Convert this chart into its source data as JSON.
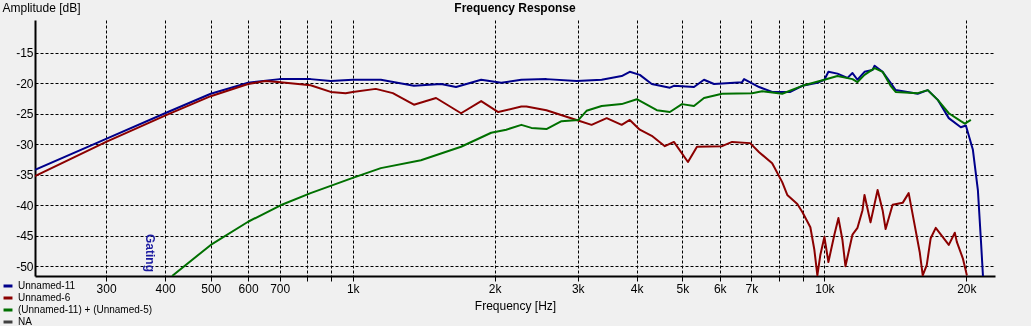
{
  "chart_data": {
    "type": "line",
    "title": "Frequency Response",
    "xlabel": "Frequency [Hz]",
    "ylabel": "Amplitude [dB]",
    "log": "x",
    "grid": true,
    "legend": "bottom left",
    "marker": "none",
    "line_style": "solid",
    "xlim": [
      212,
      23000
    ],
    "ylim": [
      -51.6,
      -9.6
    ],
    "xticks": [
      300,
      400,
      500,
      600,
      700,
      {
        "value": 800,
        "label": null
      },
      {
        "value": 900,
        "label": null
      },
      {
        "value": 1000,
        "label": "1k"
      },
      {
        "value": 2000,
        "label": "2k"
      },
      {
        "value": 3000,
        "label": "3k"
      },
      {
        "value": 4000,
        "label": "4k"
      },
      {
        "value": 5000,
        "label": "5k"
      },
      {
        "value": 6000,
        "label": "6k"
      },
      {
        "value": 7000,
        "label": "7k"
      },
      {
        "value": 8000,
        "label": null
      },
      {
        "value": 9000,
        "label": null
      },
      {
        "value": 10000,
        "label": "10k"
      },
      {
        "value": 20000,
        "label": "20k"
      }
    ],
    "yticks": [
      -15,
      -20,
      -25,
      -30,
      -35,
      -40,
      -45,
      -50
    ],
    "annotations": [
      "Gating"
    ],
    "series": [
      {
        "name": "Unnamed-11",
        "color": "#00008b",
        "x": [
          212,
          300,
          400,
          500,
          600,
          700,
          814,
          898,
          1000,
          1147,
          1348,
          1539,
          1656,
          1872,
          2065,
          2278,
          2574,
          2982,
          3371,
          3717,
          3867,
          4061,
          4305,
          4703,
          4797,
          5290,
          5556,
          5834,
          6691,
          6757,
          7272,
          7750,
          8467,
          8979,
          9663,
          10000,
          10198,
          10658,
          11192,
          11470,
          11754,
          12163,
          12648,
          12777,
          13287,
          13815,
          14159,
          15773,
          16563,
          17391,
          18354,
          19467,
          19953,
          20647,
          21156,
          21470,
          21688
        ],
        "values": [
          -34.2,
          -29.1,
          -24.9,
          -21.7,
          -19.9,
          -19.3,
          -19.3,
          -19.6,
          -19.4,
          -19.4,
          -20.4,
          -20.1,
          -20.6,
          -19.4,
          -19.9,
          -19.4,
          -19.3,
          -19.6,
          -19.4,
          -18.8,
          -18.1,
          -18.6,
          -20.1,
          -20.7,
          -20.4,
          -20.6,
          -19.4,
          -20.1,
          -19.8,
          -19.3,
          -20.6,
          -21.4,
          -21.4,
          -20.4,
          -19.9,
          -19.4,
          -18.1,
          -18.4,
          -19.1,
          -18.3,
          -19.4,
          -18.1,
          -17.8,
          -17.1,
          -18.1,
          -19.9,
          -21.1,
          -21.7,
          -21.1,
          -22.7,
          -25.7,
          -27.2,
          -26.9,
          -30.9,
          -37.5,
          -45.7,
          -51.6
        ]
      },
      {
        "name": "Unnamed-6",
        "color": "#8b0000",
        "x": [
          212,
          300,
          400,
          500,
          600,
          653,
          703,
          814,
          898,
          966,
          1000,
          1119,
          1216,
          1348,
          1502,
          1697,
          1872,
          2035,
          2278,
          2335,
          2574,
          2982,
          3209,
          3455,
          3717,
          3867,
          4061,
          4305,
          4590,
          4797,
          5137,
          5369,
          6067,
          6372,
          6958,
          7272,
          7750,
          8139,
          8343,
          8762,
          8979,
          9338,
          9522,
          9663,
          9806,
          10000,
          10198,
          10502,
          10710,
          10922,
          11083,
          11470,
          11754,
          12045,
          12163,
          12526,
          12967,
          13287,
          13485,
          13952,
          14655,
          15091,
          15542,
          15928,
          16163,
          16482,
          16803,
          17222,
          18354,
          18902,
          19090,
          19657,
          20050
        ],
        "values": [
          -35.2,
          -29.6,
          -25.3,
          -22.1,
          -20.1,
          -19.6,
          -19.8,
          -20.3,
          -21.4,
          -21.6,
          -21.4,
          -20.9,
          -21.6,
          -23.5,
          -22.4,
          -24.9,
          -22.9,
          -24.7,
          -23.8,
          -23.8,
          -24.4,
          -26.0,
          -26.8,
          -25.7,
          -26.8,
          -26.0,
          -27.6,
          -28.6,
          -30.3,
          -29.6,
          -32.9,
          -30.4,
          -30.3,
          -29.6,
          -29.8,
          -31.3,
          -33.1,
          -36.2,
          -38.3,
          -39.8,
          -41.1,
          -43.6,
          -47.3,
          -51.5,
          -48.1,
          -45.2,
          -49.3,
          -44.8,
          -42.1,
          -45.7,
          -50.0,
          -44.8,
          -43.7,
          -40.8,
          -38.3,
          -42.8,
          -37.5,
          -40.8,
          -43.9,
          -39.9,
          -39.6,
          -38.0,
          -43.3,
          -47.7,
          -51.5,
          -49.8,
          -45.4,
          -43.7,
          -46.5,
          -44.5,
          -46.0,
          -48.7,
          -51.5
        ]
      },
      {
        "name": "(Unnamed-11) + (Unnamed-5)",
        "color": "#007000",
        "x": [
          414,
          500,
          600,
          703,
          814,
          1000,
          1147,
          1395,
          1697,
          1966,
          2116,
          2278,
          2392,
          2574,
          2771,
          3011,
          3131,
          3371,
          3717,
          4002,
          4413,
          4703,
          4989,
          5290,
          5556,
          6067,
          7027,
          7380,
          8139,
          8979,
          10000,
          10658,
          11470,
          11754,
          12163,
          12777,
          13287,
          13815,
          14159,
          15773,
          16563,
          17391,
          18354,
          19467,
          19855,
          20446
        ],
        "values": [
          -51.6,
          -46.5,
          -42.7,
          -40.0,
          -38.0,
          -35.5,
          -33.9,
          -32.6,
          -30.4,
          -28.1,
          -27.6,
          -26.8,
          -27.3,
          -27.5,
          -26.2,
          -26.0,
          -24.5,
          -23.7,
          -23.4,
          -22.6,
          -24.4,
          -24.7,
          -23.4,
          -23.7,
          -22.4,
          -21.7,
          -21.6,
          -21.3,
          -21.7,
          -20.4,
          -19.4,
          -18.8,
          -19.3,
          -19.8,
          -18.6,
          -17.5,
          -18.1,
          -20.4,
          -21.4,
          -21.6,
          -21.1,
          -22.7,
          -24.9,
          -26.2,
          -26.6,
          -26.0
        ]
      },
      {
        "name": "NA",
        "color": "#404040"
      }
    ]
  }
}
